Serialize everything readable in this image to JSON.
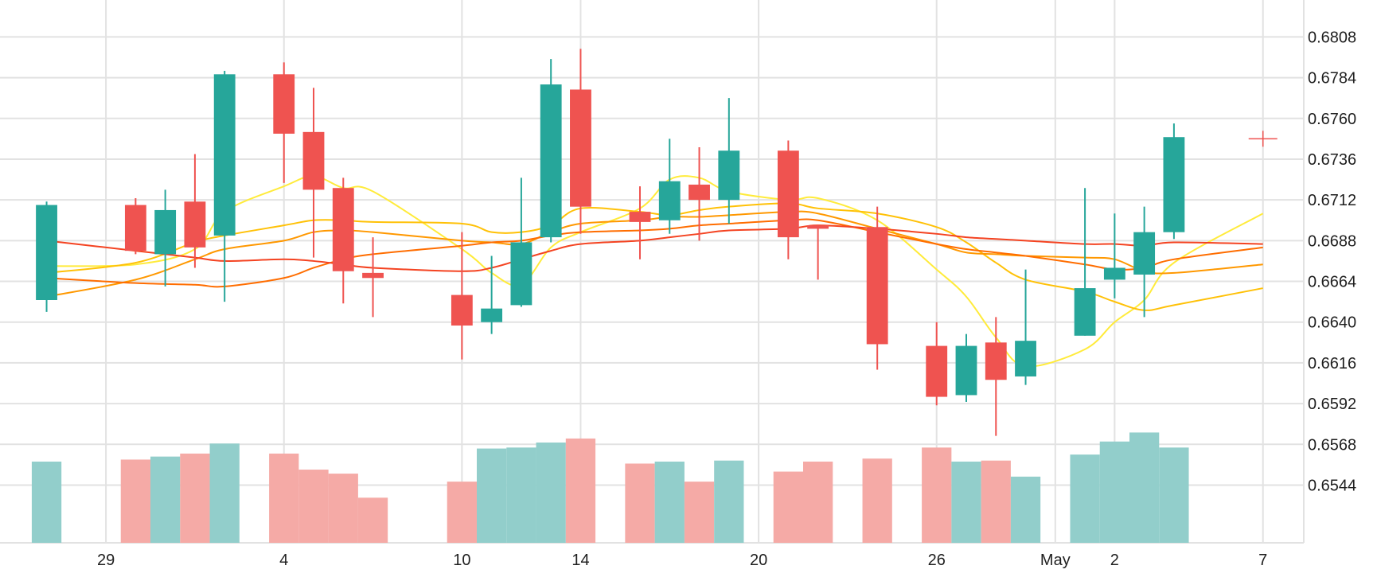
{
  "chart_data": {
    "type": "candlestick",
    "title": "",
    "y_axis": {
      "ticks": [
        "0.6544",
        "0.6568",
        "0.6592",
        "0.6616",
        "0.6640",
        "0.6664",
        "0.6688",
        "0.6712",
        "0.6736",
        "0.6760",
        "0.6784",
        "0.6808"
      ],
      "range": [
        0.651,
        0.6826
      ]
    },
    "x_axis": {
      "tick_labels": [
        {
          "label": "29",
          "date": "2021-03-29"
        },
        {
          "label": "4",
          "date": "2021-04-04"
        },
        {
          "label": "10",
          "date": "2021-04-10"
        },
        {
          "label": "14",
          "date": "2021-04-14"
        },
        {
          "label": "20",
          "date": "2021-04-20"
        },
        {
          "label": "26",
          "date": "2021-04-26"
        },
        {
          "label": "May",
          "date": "2021-04-30"
        },
        {
          "label": "2",
          "date": "2021-05-02"
        },
        {
          "label": "7",
          "date": "2021-05-07"
        }
      ],
      "range": [
        "2021-03-25",
        "2021-05-08"
      ]
    },
    "volume_scale_max": 100,
    "candles": [
      {
        "date": "2021-03-27",
        "open": 0.6653,
        "high": 0.6711,
        "low": 0.6646,
        "close": 0.6709,
        "volume": 81
      },
      {
        "date": "2021-03-30",
        "open": 0.6709,
        "high": 0.6713,
        "low": 0.668,
        "close": 0.6682,
        "volume": 83
      },
      {
        "date": "2021-03-31",
        "open": 0.668,
        "high": 0.6718,
        "low": 0.6661,
        "close": 0.6706,
        "volume": 86
      },
      {
        "date": "2021-04-01",
        "open": 0.6711,
        "high": 0.6739,
        "low": 0.6672,
        "close": 0.6684,
        "volume": 89
      },
      {
        "date": "2021-04-02",
        "open": 0.6691,
        "high": 0.6788,
        "low": 0.6652,
        "close": 0.6786,
        "volume": 99
      },
      {
        "date": "2021-04-04",
        "open": 0.6786,
        "high": 0.6793,
        "low": 0.6722,
        "close": 0.6751,
        "volume": 89
      },
      {
        "date": "2021-04-05",
        "open": 0.6752,
        "high": 0.6778,
        "low": 0.6678,
        "close": 0.6718,
        "volume": 73
      },
      {
        "date": "2021-04-06",
        "open": 0.6719,
        "high": 0.6725,
        "low": 0.6651,
        "close": 0.667,
        "volume": 69
      },
      {
        "date": "2021-04-07",
        "open": 0.6669,
        "high": 0.669,
        "low": 0.6643,
        "close": 0.6666,
        "volume": 45
      },
      {
        "date": "2021-04-10",
        "open": 0.6656,
        "high": 0.6693,
        "low": 0.6618,
        "close": 0.6638,
        "volume": 61
      },
      {
        "date": "2021-04-11",
        "open": 0.664,
        "high": 0.6679,
        "low": 0.6633,
        "close": 0.6648,
        "volume": 94
      },
      {
        "date": "2021-04-12",
        "open": 0.665,
        "high": 0.6725,
        "low": 0.6649,
        "close": 0.6687,
        "volume": 95
      },
      {
        "date": "2021-04-13",
        "open": 0.669,
        "high": 0.6795,
        "low": 0.6687,
        "close": 0.678,
        "volume": 100
      },
      {
        "date": "2021-04-14",
        "open": 0.6777,
        "high": 0.6801,
        "low": 0.6692,
        "close": 0.6708,
        "volume": 104
      },
      {
        "date": "2021-04-16",
        "open": 0.6705,
        "high": 0.672,
        "low": 0.6677,
        "close": 0.6699,
        "volume": 79
      },
      {
        "date": "2021-04-17",
        "open": 0.67,
        "high": 0.6748,
        "low": 0.6692,
        "close": 0.6723,
        "volume": 81
      },
      {
        "date": "2021-04-18",
        "open": 0.6721,
        "high": 0.6743,
        "low": 0.6688,
        "close": 0.6712,
        "volume": 61
      },
      {
        "date": "2021-04-19",
        "open": 0.6712,
        "high": 0.6772,
        "low": 0.6698,
        "close": 0.6741,
        "volume": 82
      },
      {
        "date": "2021-04-21",
        "open": 0.6741,
        "high": 0.6747,
        "low": 0.6677,
        "close": 0.669,
        "volume": 71
      },
      {
        "date": "2021-04-22",
        "open": 0.6697,
        "high": 0.6697,
        "low": 0.6665,
        "close": 0.6695,
        "volume": 81
      },
      {
        "date": "2021-04-24",
        "open": 0.6696,
        "high": 0.6708,
        "low": 0.6612,
        "close": 0.6627,
        "volume": 84
      },
      {
        "date": "2021-04-26",
        "open": 0.6626,
        "high": 0.664,
        "low": 0.6591,
        "close": 0.6596,
        "volume": 95
      },
      {
        "date": "2021-04-27",
        "open": 0.6597,
        "high": 0.6633,
        "low": 0.6593,
        "close": 0.6626,
        "volume": 81
      },
      {
        "date": "2021-04-28",
        "open": 0.6628,
        "high": 0.6643,
        "low": 0.6573,
        "close": 0.6606,
        "volume": 82
      },
      {
        "date": "2021-04-29",
        "open": 0.6608,
        "high": 0.6671,
        "low": 0.6603,
        "close": 0.6629,
        "volume": 66
      },
      {
        "date": "2021-05-01",
        "open": 0.6632,
        "high": 0.6719,
        "low": 0.6632,
        "close": 0.666,
        "volume": 88
      },
      {
        "date": "2021-05-02",
        "open": 0.6665,
        "high": 0.6704,
        "low": 0.6654,
        "close": 0.6672,
        "volume": 101
      },
      {
        "date": "2021-05-03",
        "open": 0.6668,
        "high": 0.6708,
        "low": 0.6643,
        "close": 0.6693,
        "volume": 110
      },
      {
        "date": "2021-05-04",
        "open": 0.6693,
        "high": 0.6757,
        "low": 0.6689,
        "close": 0.6749,
        "volume": 95
      }
    ],
    "last_price_marker": {
      "date": "2021-05-07",
      "value": 0.6748
    },
    "moving_averages": [
      {
        "color": "#ffeb3b",
        "points": [
          [
            "2021-03-27",
            0.6673
          ],
          [
            "2021-03-30",
            0.6674
          ],
          [
            "2021-04-01",
            0.6683
          ],
          [
            "2021-04-02",
            0.6705
          ],
          [
            "2021-04-04",
            0.672
          ],
          [
            "2021-04-05",
            0.6726
          ],
          [
            "2021-04-06",
            0.6719
          ],
          [
            "2021-04-07",
            0.6717
          ],
          [
            "2021-04-10",
            0.6683
          ],
          [
            "2021-04-11",
            0.6669
          ],
          [
            "2021-04-12",
            0.6662
          ],
          [
            "2021-04-13",
            0.6684
          ],
          [
            "2021-04-14",
            0.6693
          ],
          [
            "2021-04-16",
            0.6707
          ],
          [
            "2021-04-17",
            0.6724
          ],
          [
            "2021-04-18",
            0.6725
          ],
          [
            "2021-04-19",
            0.6717
          ],
          [
            "2021-04-21",
            0.6712
          ],
          [
            "2021-04-22",
            0.6713
          ],
          [
            "2021-04-24",
            0.67
          ],
          [
            "2021-04-26",
            0.6671
          ],
          [
            "2021-04-27",
            0.6655
          ],
          [
            "2021-04-28",
            0.6631
          ],
          [
            "2021-04-29",
            0.6614
          ],
          [
            "2021-05-01",
            0.6624
          ],
          [
            "2021-05-02",
            0.664
          ],
          [
            "2021-05-03",
            0.6653
          ],
          [
            "2021-05-04",
            0.6675
          ],
          [
            "2021-05-07",
            0.6704
          ]
        ]
      },
      {
        "color": "#ffc107",
        "points": [
          [
            "2021-03-27",
            0.6669
          ],
          [
            "2021-03-30",
            0.6675
          ],
          [
            "2021-04-01",
            0.6687
          ],
          [
            "2021-04-02",
            0.6691
          ],
          [
            "2021-04-04",
            0.6697
          ],
          [
            "2021-04-05",
            0.67
          ],
          [
            "2021-04-06",
            0.67
          ],
          [
            "2021-04-07",
            0.6699
          ],
          [
            "2021-04-10",
            0.6698
          ],
          [
            "2021-04-11",
            0.6693
          ],
          [
            "2021-04-12",
            0.6693
          ],
          [
            "2021-04-13",
            0.6697
          ],
          [
            "2021-04-14",
            0.6707
          ],
          [
            "2021-04-16",
            0.6705
          ],
          [
            "2021-04-17",
            0.6703
          ],
          [
            "2021-04-18",
            0.6706
          ],
          [
            "2021-04-19",
            0.6708
          ],
          [
            "2021-04-21",
            0.671
          ],
          [
            "2021-04-22",
            0.6707
          ],
          [
            "2021-04-24",
            0.6704
          ],
          [
            "2021-04-26",
            0.6696
          ],
          [
            "2021-04-27",
            0.6687
          ],
          [
            "2021-04-28",
            0.6675
          ],
          [
            "2021-04-29",
            0.6665
          ],
          [
            "2021-05-01",
            0.6658
          ],
          [
            "2021-05-02",
            0.6652
          ],
          [
            "2021-05-03",
            0.6647
          ],
          [
            "2021-05-04",
            0.665
          ],
          [
            "2021-05-07",
            0.666
          ]
        ]
      },
      {
        "color": "#ff9800",
        "points": [
          [
            "2021-03-27",
            0.6655
          ],
          [
            "2021-03-30",
            0.6665
          ],
          [
            "2021-04-01",
            0.6677
          ],
          [
            "2021-04-02",
            0.6683
          ],
          [
            "2021-04-04",
            0.6688
          ],
          [
            "2021-04-05",
            0.6693
          ],
          [
            "2021-04-06",
            0.6694
          ],
          [
            "2021-04-07",
            0.6693
          ],
          [
            "2021-04-10",
            0.6688
          ],
          [
            "2021-04-11",
            0.6687
          ],
          [
            "2021-04-12",
            0.6686
          ],
          [
            "2021-04-13",
            0.6693
          ],
          [
            "2021-04-14",
            0.6698
          ],
          [
            "2021-04-16",
            0.67
          ],
          [
            "2021-04-17",
            0.6702
          ],
          [
            "2021-04-18",
            0.6702
          ],
          [
            "2021-04-19",
            0.6703
          ],
          [
            "2021-04-21",
            0.6705
          ],
          [
            "2021-04-22",
            0.6704
          ],
          [
            "2021-04-24",
            0.6695
          ],
          [
            "2021-04-26",
            0.6686
          ],
          [
            "2021-04-27",
            0.6681
          ],
          [
            "2021-04-28",
            0.668
          ],
          [
            "2021-04-29",
            0.6679
          ],
          [
            "2021-05-01",
            0.6678
          ],
          [
            "2021-05-02",
            0.6677
          ],
          [
            "2021-05-03",
            0.667
          ],
          [
            "2021-05-04",
            0.6669
          ],
          [
            "2021-05-07",
            0.6674
          ]
        ]
      },
      {
        "color": "#ff6d00",
        "points": [
          [
            "2021-03-27",
            0.6666
          ],
          [
            "2021-03-30",
            0.6663
          ],
          [
            "2021-04-01",
            0.6662
          ],
          [
            "2021-04-02",
            0.6661
          ],
          [
            "2021-04-04",
            0.6666
          ],
          [
            "2021-04-05",
            0.6672
          ],
          [
            "2021-04-06",
            0.6677
          ],
          [
            "2021-04-07",
            0.668
          ],
          [
            "2021-04-10",
            0.6685
          ],
          [
            "2021-04-11",
            0.6687
          ],
          [
            "2021-04-12",
            0.6688
          ],
          [
            "2021-04-13",
            0.6691
          ],
          [
            "2021-04-14",
            0.6693
          ],
          [
            "2021-04-16",
            0.6694
          ],
          [
            "2021-04-17",
            0.6695
          ],
          [
            "2021-04-18",
            0.6697
          ],
          [
            "2021-04-19",
            0.6698
          ],
          [
            "2021-04-21",
            0.67
          ],
          [
            "2021-04-22",
            0.67
          ],
          [
            "2021-04-24",
            0.6693
          ],
          [
            "2021-04-26",
            0.6686
          ],
          [
            "2021-04-27",
            0.6683
          ],
          [
            "2021-04-28",
            0.6681
          ],
          [
            "2021-04-29",
            0.6679
          ],
          [
            "2021-05-01",
            0.6674
          ],
          [
            "2021-05-02",
            0.6671
          ],
          [
            "2021-05-03",
            0.6672
          ],
          [
            "2021-05-04",
            0.6677
          ],
          [
            "2021-05-07",
            0.6684
          ]
        ]
      },
      {
        "color": "#f44321",
        "points": [
          [
            "2021-03-27",
            0.6688
          ],
          [
            "2021-03-30",
            0.6682
          ],
          [
            "2021-04-01",
            0.6678
          ],
          [
            "2021-04-02",
            0.6676
          ],
          [
            "2021-04-04",
            0.6677
          ],
          [
            "2021-04-05",
            0.6676
          ],
          [
            "2021-04-06",
            0.6674
          ],
          [
            "2021-04-07",
            0.6672
          ],
          [
            "2021-04-10",
            0.667
          ],
          [
            "2021-04-11",
            0.6672
          ],
          [
            "2021-04-12",
            0.6677
          ],
          [
            "2021-04-13",
            0.6682
          ],
          [
            "2021-04-14",
            0.6686
          ],
          [
            "2021-04-16",
            0.6688
          ],
          [
            "2021-04-17",
            0.669
          ],
          [
            "2021-04-18",
            0.6692
          ],
          [
            "2021-04-19",
            0.6694
          ],
          [
            "2021-04-21",
            0.6695
          ],
          [
            "2021-04-22",
            0.6697
          ],
          [
            "2021-04-24",
            0.6695
          ],
          [
            "2021-04-26",
            0.6692
          ],
          [
            "2021-04-27",
            0.669
          ],
          [
            "2021-04-28",
            0.6689
          ],
          [
            "2021-04-29",
            0.6688
          ],
          [
            "2021-05-01",
            0.6686
          ],
          [
            "2021-05-02",
            0.6686
          ],
          [
            "2021-05-03",
            0.6685
          ],
          [
            "2021-05-04",
            0.6687
          ],
          [
            "2021-05-07",
            0.6686
          ]
        ]
      }
    ],
    "colors": {
      "up": "#26a69a",
      "down": "#ef5350",
      "volume_up": "#92cecb",
      "volume_down": "#f5aaa6",
      "grid": "#e2e2e2",
      "axis_text": "#1f1f1f",
      "marker": "#ef5350"
    },
    "grid": true,
    "legend": "none"
  }
}
